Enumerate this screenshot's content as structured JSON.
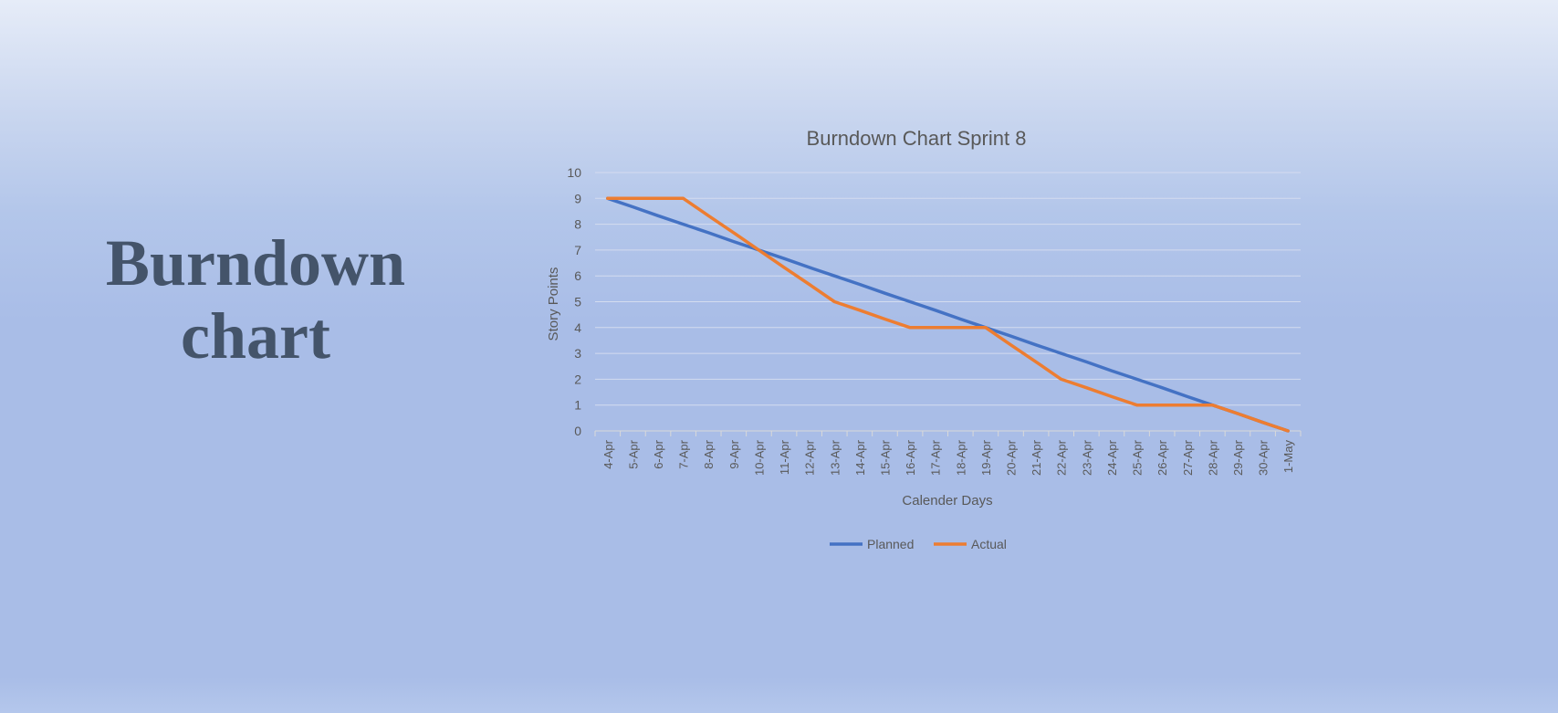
{
  "slide": {
    "title_line1": "Burndown",
    "title_line2": "chart"
  },
  "chart_data": {
    "type": "line",
    "title": "Burndown Chart Sprint 8",
    "xlabel": "Calender Days",
    "ylabel": "Story Points",
    "ylim": [
      0,
      10
    ],
    "yticks": [
      0,
      1,
      2,
      3,
      4,
      5,
      6,
      7,
      8,
      9,
      10
    ],
    "grid": true,
    "legend_position": "bottom",
    "categories": [
      "4-Apr",
      "5-Apr",
      "6-Apr",
      "7-Apr",
      "8-Apr",
      "9-Apr",
      "10-Apr",
      "11-Apr",
      "12-Apr",
      "13-Apr",
      "14-Apr",
      "15-Apr",
      "16-Apr",
      "17-Apr",
      "18-Apr",
      "19-Apr",
      "20-Apr",
      "21-Apr",
      "22-Apr",
      "23-Apr",
      "24-Apr",
      "25-Apr",
      "26-Apr",
      "27-Apr",
      "28-Apr",
      "29-Apr",
      "30-Apr",
      "1-May"
    ],
    "series": [
      {
        "name": "Planned",
        "color": "#4472c4",
        "values": [
          9,
          8.67,
          8.33,
          8,
          7.67,
          7.33,
          7,
          6.67,
          6.33,
          6,
          5.67,
          5.33,
          5,
          4.67,
          4.33,
          4,
          3.67,
          3.33,
          3,
          2.67,
          2.33,
          2,
          1.67,
          1.33,
          1,
          0.67,
          0.33,
          0
        ]
      },
      {
        "name": "Actual",
        "color": "#ed7d31",
        "values": [
          9,
          9,
          9,
          9,
          8.33,
          7.67,
          7,
          6.33,
          5.67,
          5,
          4.67,
          4.33,
          4,
          4,
          4,
          4,
          3.33,
          2.67,
          2,
          1.67,
          1.33,
          1,
          1,
          1,
          1,
          0.67,
          0.33,
          0
        ]
      }
    ]
  }
}
